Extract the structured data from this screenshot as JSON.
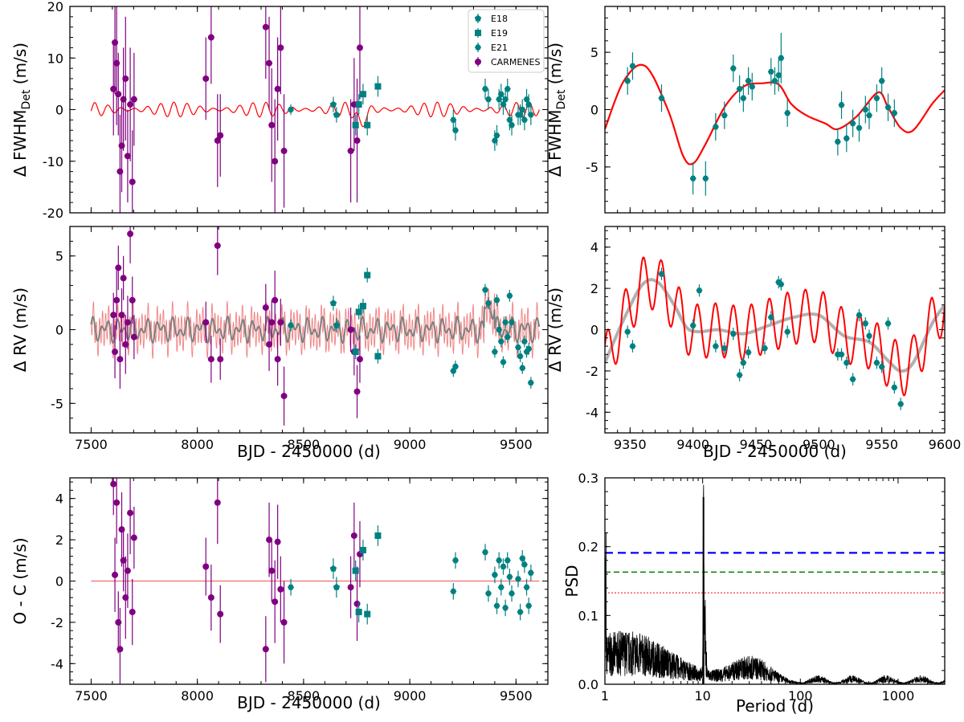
{
  "figure": {
    "x_axis_label": "BJD - 2450000 (d)",
    "period_axis_label": "Period (d)"
  },
  "chart_data": [
    {
      "id": "fwhm-full",
      "type": "scatter",
      "ylabel": "Δ FWHM_Det (m/s)",
      "xlabel": "",
      "xlim": [
        7400,
        9650
      ],
      "ylim": [
        -20,
        20
      ],
      "xticks": [
        7500,
        8000,
        8500,
        9000,
        9500
      ],
      "yticks": [
        -20,
        -10,
        0,
        10,
        20
      ],
      "xtick_labels": [
        "",
        "",
        "",
        "",
        ""
      ],
      "ytick_labels": [
        "-20",
        "-10",
        "0",
        "10",
        "20"
      ],
      "legend": {
        "position": "top-right",
        "entries": [
          {
            "label": "E18",
            "marker": "pentagon",
            "color": "#008080"
          },
          {
            "label": "E19",
            "marker": "square",
            "color": "#008080"
          },
          {
            "label": "E21",
            "marker": "hexagon",
            "color": "#008080"
          },
          {
            "label": "CARMENES",
            "marker": "circle",
            "color": "#800080"
          }
        ]
      },
      "series": [
        {
          "name": "CARMENES",
          "color": "#800080",
          "x": [
            7605,
            7612,
            7620,
            7628,
            7636,
            7644,
            7652,
            7662,
            7672,
            7684,
            7694,
            7702,
            8040,
            8065,
            8095,
            8108,
            8322,
            8338,
            8350,
            8365,
            8378,
            8392,
            8408,
            8722,
            8738,
            8752,
            8765
          ],
          "y": [
            4,
            13,
            9,
            3,
            -12,
            -7,
            2,
            6,
            -9,
            1,
            -14,
            2,
            6,
            14,
            -6,
            -5,
            16,
            9,
            -3,
            -10,
            4,
            12,
            -8,
            -8,
            1,
            -6,
            12
          ],
          "err": [
            9,
            10,
            12,
            8,
            11,
            9,
            10,
            12,
            9,
            11,
            10,
            9,
            8,
            9,
            9,
            8,
            10,
            9,
            11,
            12,
            10,
            9,
            11,
            10,
            9,
            12,
            10
          ]
        },
        {
          "name": "E18",
          "color": "#008080",
          "x": [
            8640,
            8655
          ],
          "y": [
            1,
            -1
          ],
          "err": [
            1.5,
            1.5
          ]
        },
        {
          "name": "E19",
          "color": "#008080",
          "x": [
            8745,
            8760,
            8780,
            8800,
            8850
          ],
          "y": [
            -3,
            1,
            3,
            -3,
            4.5
          ],
          "err": [
            2,
            2,
            2,
            2,
            2
          ]
        },
        {
          "name": "E21",
          "color": "#008080",
          "x": [
            8440,
            9205,
            9215,
            9355,
            9370,
            9400,
            9410,
            9420,
            9430,
            9440,
            9450,
            9460,
            9470,
            9480,
            9510,
            9520,
            9530,
            9540,
            9550,
            9560,
            9570
          ],
          "y": [
            0,
            -2,
            -4,
            4,
            2,
            -6,
            -5,
            2,
            3,
            1,
            2,
            4,
            -2,
            -3,
            -1,
            -1,
            0,
            -2,
            2,
            1,
            -1
          ],
          "err": [
            1,
            2,
            2,
            2,
            2,
            2,
            2,
            2,
            2,
            2,
            2,
            2,
            2,
            2,
            2,
            2,
            2,
            2,
            2,
            2,
            2
          ]
        }
      ],
      "model": {
        "color": "#ff0000",
        "x_range": [
          7500,
          9610
        ],
        "amplitude": 1.2
      }
    },
    {
      "id": "fwhm-zoom",
      "type": "scatter",
      "ylabel": "Δ FWHM_Det (m/s)",
      "xlabel": "",
      "xlim": [
        9330,
        9600
      ],
      "ylim": [
        -9,
        9
      ],
      "xticks": [
        9350,
        9400,
        9450,
        9500,
        9550,
        9600
      ],
      "yticks": [
        -5,
        0,
        5
      ],
      "xtick_labels": [
        "",
        "",
        "",
        "",
        "",
        ""
      ],
      "ytick_labels": [
        "-5",
        "0",
        "5"
      ],
      "series": [
        {
          "name": "E21",
          "color": "#008080",
          "x": [
            9348,
            9352,
            9375,
            9400,
            9410,
            9418,
            9425,
            9432,
            9437,
            9440,
            9444,
            9447,
            9462,
            9465,
            9468,
            9470,
            9475,
            9515,
            9518,
            9522,
            9527,
            9532,
            9537,
            9540,
            9546,
            9550,
            9555,
            9560
          ],
          "y": [
            2.5,
            3.8,
            1,
            -6,
            -6,
            -1.5,
            -0.5,
            3.6,
            1.8,
            1,
            2.5,
            2,
            3.3,
            2.5,
            3,
            4.5,
            -0.3,
            -2.8,
            0.4,
            -2.5,
            -1.2,
            -1.6,
            0,
            -0.5,
            1,
            2.5,
            0.2,
            -0.3
          ],
          "err": [
            1.2,
            1.2,
            1.2,
            1.4,
            1.5,
            1.2,
            1.2,
            1.2,
            1.2,
            1.2,
            1.2,
            1.2,
            1.2,
            1.2,
            1.4,
            2.2,
            1.2,
            1.2,
            1.2,
            1.2,
            1.2,
            1.2,
            1.2,
            1.2,
            1.2,
            1.2,
            1.2,
            1.2
          ]
        }
      ],
      "model": {
        "color": "#ff0000",
        "x": [
          9330,
          9345,
          9362,
          9380,
          9392,
          9400,
          9410,
          9425,
          9440,
          9455,
          9468,
          9478,
          9490,
          9505,
          9515,
          9530,
          9547,
          9555,
          9565,
          9575,
          9590,
          9600
        ],
        "y": [
          -1.7,
          2.5,
          3.8,
          0,
          -4,
          -4.7,
          -3,
          0.2,
          2,
          2.3,
          2.2,
          0.5,
          -0.5,
          -1.2,
          -1.7,
          -0.6,
          1.5,
          0.2,
          -1.6,
          -1.8,
          0.5,
          1.7
        ]
      }
    },
    {
      "id": "rv-full",
      "type": "scatter",
      "ylabel": "Δ RV (m/s)",
      "xlabel": "BJD - 2450000 (d)",
      "xlim": [
        7400,
        9650
      ],
      "ylim": [
        -7,
        7
      ],
      "xticks": [
        7500,
        8000,
        8500,
        9000,
        9500
      ],
      "yticks": [
        -5,
        0,
        5
      ],
      "xtick_labels": [
        "7500",
        "8000",
        "8500",
        "9000",
        "9500"
      ],
      "ytick_labels": [
        "-5",
        "0",
        "5"
      ],
      "series": [
        {
          "name": "CARMENES",
          "color": "#800080",
          "x": [
            7605,
            7612,
            7620,
            7628,
            7636,
            7644,
            7652,
            7662,
            7672,
            7684,
            7694,
            7702,
            8040,
            8065,
            8095,
            8108,
            8322,
            8338,
            8350,
            8365,
            8378,
            8392,
            8408,
            8722,
            8738,
            8752,
            8765
          ],
          "y": [
            1,
            -1.5,
            2,
            4.2,
            -2,
            1,
            3.5,
            -1,
            0.5,
            6.5,
            2,
            -0.5,
            0.5,
            -2,
            5.7,
            -2,
            1.5,
            -1,
            0.5,
            2,
            -2,
            0.5,
            -4.5,
            0,
            -1.5,
            -4.2,
            -2
          ],
          "err": [
            1.5,
            1.8,
            2,
            1.5,
            2,
            1.8,
            1.5,
            2,
            1.8,
            2,
            1.6,
            1.5,
            1.4,
            1.6,
            2,
            1.4,
            1.6,
            1.8,
            1.5,
            2,
            1.8,
            1.6,
            2,
            1.5,
            1.6,
            1.8,
            1.6
          ]
        },
        {
          "name": "E18",
          "color": "#008080",
          "x": [
            8640,
            8655
          ],
          "y": [
            1.8,
            0.3
          ],
          "err": [
            0.5,
            0.5
          ]
        },
        {
          "name": "E19",
          "color": "#008080",
          "x": [
            8745,
            8760,
            8780,
            8800,
            8850
          ],
          "y": [
            -1.5,
            1.2,
            1.6,
            3.7,
            -1.8
          ],
          "err": [
            0.5,
            0.5,
            0.5,
            0.5,
            0.5
          ]
        },
        {
          "name": "E21",
          "color": "#008080",
          "x": [
            8440,
            9205,
            9215,
            9355,
            9370,
            9400,
            9410,
            9420,
            9430,
            9440,
            9450,
            9460,
            9470,
            9480,
            9510,
            9520,
            9530,
            9540,
            9550,
            9560,
            9570
          ],
          "y": [
            0.3,
            -2.8,
            -2.5,
            2.7,
            1.8,
            -1.5,
            2,
            0,
            -0.8,
            -2.2,
            0.5,
            -0.5,
            2.3,
            0.5,
            -1.2,
            -1.8,
            -2.6,
            -0.8,
            -1.5,
            -1.3,
            -3.6
          ],
          "err": [
            0.4,
            0.4,
            0.4,
            0.4,
            0.4,
            0.4,
            0.4,
            0.4,
            0.4,
            0.4,
            0.4,
            0.4,
            0.4,
            0.4,
            0.4,
            0.4,
            0.4,
            0.4,
            0.4,
            0.4,
            0.4
          ]
        }
      ],
      "model": {
        "color": "#f08080",
        "gp_color": "#808080",
        "x_range": [
          7500,
          9610
        ],
        "amplitude": 1.1
      }
    },
    {
      "id": "rv-zoom",
      "type": "scatter",
      "ylabel": "Δ RV (m/s)",
      "xlabel": "BJD - 2450000 (d)",
      "xlim": [
        9330,
        9600
      ],
      "ylim": [
        -5,
        5
      ],
      "xticks": [
        9350,
        9400,
        9450,
        9500,
        9550,
        9600
      ],
      "yticks": [
        -4,
        -2,
        0,
        2,
        4
      ],
      "xtick_labels": [
        "9350",
        "9400",
        "9450",
        "9500",
        "9550",
        "9600"
      ],
      "ytick_labels": [
        "-4",
        "-2",
        "0",
        "2",
        "4"
      ],
      "series": [
        {
          "name": "E21",
          "color": "#008080",
          "x": [
            9348,
            9352,
            9375,
            9400,
            9405,
            9418,
            9425,
            9432,
            9437,
            9440,
            9444,
            9457,
            9462,
            9468,
            9470,
            9475,
            9515,
            9518,
            9522,
            9527,
            9532,
            9537,
            9540,
            9546,
            9550,
            9555,
            9560,
            9565
          ],
          "y": [
            -0.1,
            -0.8,
            2.7,
            0.2,
            1.9,
            -0.8,
            -0.9,
            -0.2,
            -2.2,
            -1.6,
            -1.1,
            -0.9,
            0.6,
            2.3,
            2.2,
            -0.1,
            -1.2,
            -1.2,
            -1.6,
            -2.4,
            0.7,
            0.3,
            -0.3,
            -1.6,
            -1.8,
            0.3,
            -2.8,
            -3.6
          ]
        }
      ],
      "model": {
        "color": "#ff0000",
        "gp_color": "#b0b0b0",
        "gp_x": [
          9330,
          9345,
          9360,
          9372,
          9385,
          9395,
          9405,
          9420,
          9440,
          9460,
          9480,
          9500,
          9520,
          9540,
          9555,
          9565,
          9575,
          9590,
          9600
        ],
        "gp_y": [
          -1.6,
          0.5,
          2.2,
          2.3,
          1.2,
          0.1,
          -0.1,
          0,
          -0.2,
          0.2,
          0.6,
          0.7,
          -0.3,
          -0.6,
          -1.5,
          -2,
          -1.6,
          0.3,
          1.2
        ],
        "period": 14.3,
        "amplitude": 1.3
      }
    },
    {
      "id": "oc",
      "type": "scatter",
      "ylabel": "O - C (m/s)",
      "xlabel": "BJD - 2450000 (d)",
      "xlim": [
        7400,
        9650
      ],
      "ylim": [
        -5,
        5
      ],
      "xticks": [
        7500,
        8000,
        8500,
        9000,
        9500
      ],
      "yticks": [
        -4,
        -2,
        0,
        2,
        4
      ],
      "xtick_labels": [
        "7500",
        "8000",
        "8500",
        "9000",
        "9500"
      ],
      "ytick_labels": [
        "-4",
        "-2",
        "0",
        "2",
        "4"
      ],
      "series": [
        {
          "name": "CARMENES",
          "color": "#800080",
          "x": [
            7605,
            7612,
            7620,
            7628,
            7636,
            7644,
            7652,
            7662,
            7672,
            7684,
            7694,
            7702,
            8040,
            8065,
            8095,
            8108,
            8322,
            8338,
            8350,
            8365,
            8378,
            8392,
            8408,
            8722,
            8738,
            8752,
            8765
          ],
          "y": [
            4.7,
            0.3,
            3.8,
            -2,
            -3.3,
            2.5,
            1,
            -0.8,
            0.5,
            3.3,
            -1.5,
            2.1,
            0.7,
            -0.8,
            3.8,
            -1.6,
            -3.3,
            2,
            0.5,
            -1,
            1.9,
            -0.4,
            -2,
            -0.3,
            2.2,
            -1.1,
            1.3
          ],
          "err": [
            1.5,
            1.8,
            2,
            1.5,
            2,
            1.8,
            1.5,
            2,
            1.8,
            2,
            1.6,
            1.5,
            1.4,
            1.6,
            2,
            1.4,
            1.6,
            1.8,
            1.5,
            2,
            1.8,
            1.6,
            2,
            1.5,
            1.6,
            1.8,
            1.6
          ]
        },
        {
          "name": "E18",
          "color": "#008080",
          "x": [
            8640,
            8655
          ],
          "y": [
            0.6,
            -0.3
          ],
          "err": [
            0.5,
            0.5
          ]
        },
        {
          "name": "E19",
          "color": "#008080",
          "x": [
            8745,
            8760,
            8780,
            8800,
            8850
          ],
          "y": [
            0.5,
            -1.5,
            1.5,
            -1.6,
            2.2
          ],
          "err": [
            0.5,
            0.5,
            0.5,
            0.5,
            0.5
          ]
        },
        {
          "name": "E21",
          "color": "#008080",
          "x": [
            8440,
            9205,
            9215,
            9355,
            9370,
            9400,
            9410,
            9420,
            9430,
            9440,
            9450,
            9460,
            9470,
            9480,
            9510,
            9520,
            9530,
            9540,
            9550,
            9560,
            9570
          ],
          "y": [
            -0.3,
            -0.5,
            1,
            1.4,
            -0.6,
            0.3,
            -1.2,
            1,
            -0.3,
            0.7,
            -1.3,
            1,
            0.2,
            -0.6,
            0.1,
            -1.5,
            1.1,
            0.8,
            -0.3,
            -1.2,
            0.4
          ],
          "err": [
            0.4,
            0.4,
            0.4,
            0.4,
            0.4,
            0.4,
            0.4,
            0.4,
            0.4,
            0.4,
            0.4,
            0.4,
            0.4,
            0.4,
            0.4,
            0.4,
            0.4,
            0.4,
            0.4,
            0.4,
            0.4
          ]
        }
      ],
      "model": {
        "color": "#f08080",
        "y": 0
      }
    },
    {
      "id": "periodogram",
      "type": "line",
      "ylabel": "PSD",
      "xlabel": "Period (d)",
      "xscale": "log",
      "xlim": [
        1,
        3000
      ],
      "ylim": [
        0,
        0.3
      ],
      "xticks": [
        1,
        10,
        100,
        1000
      ],
      "yticks": [
        0,
        0.1,
        0.2,
        0.3
      ],
      "xtick_labels": [
        "1",
        "10",
        "100",
        "1000"
      ],
      "ytick_labels": [
        "0.0",
        "0.1",
        "0.2",
        "0.3"
      ],
      "peak": {
        "period": 10.2,
        "psd": 0.272
      },
      "fap_lines": [
        {
          "level": 0.191,
          "color": "#0000ff",
          "style": "dashed"
        },
        {
          "level": 0.163,
          "color": "#008000",
          "style": "dashed"
        },
        {
          "level": 0.133,
          "color": "#ff0000",
          "style": "dotted"
        }
      ]
    }
  ]
}
